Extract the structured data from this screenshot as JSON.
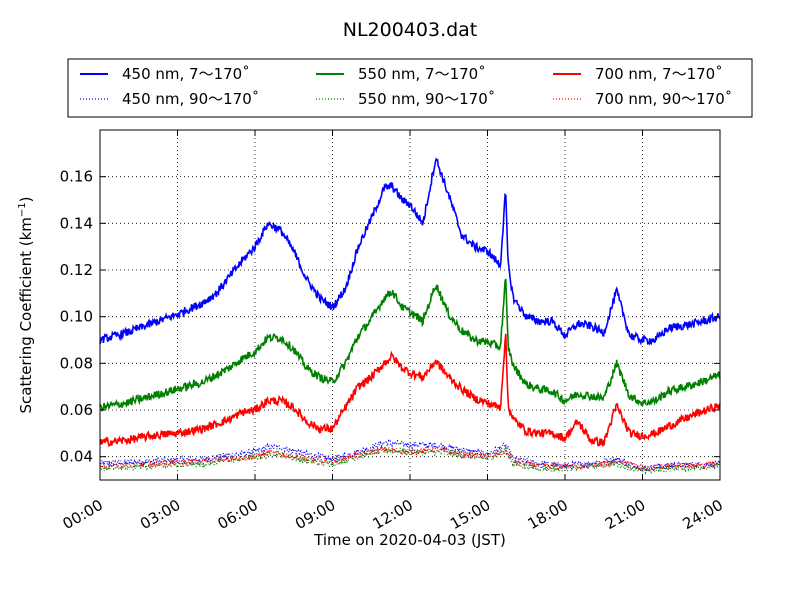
{
  "chart_data": {
    "type": "line",
    "title": "NL200403.dat",
    "xlabel": "Time on 2020-04-03 (JST)",
    "ylabel_main": "Scattering Coefficient (km",
    "ylabel_sup": "−1",
    "ylabel_close": ")",
    "xlim": [
      "00:00",
      "24:00"
    ],
    "ylim": [
      0.03,
      0.18
    ],
    "x_ticks": [
      "00:00",
      "03:00",
      "06:00",
      "09:00",
      "12:00",
      "15:00",
      "18:00",
      "21:00",
      "24:00"
    ],
    "y_ticks": [
      "0.04",
      "0.06",
      "0.08",
      "0.10",
      "0.12",
      "0.14",
      "0.16"
    ],
    "grid": true,
    "legend_position": "top",
    "colors": {
      "450": "#0000ff",
      "550": "#008000",
      "700": "#ff0000"
    },
    "series": [
      {
        "name": "450 nm, 7～170˚",
        "style": "solid",
        "color": "#0000ff",
        "x_hours": [
          0,
          1,
          2,
          3,
          4,
          4.5,
          5,
          5.5,
          6,
          6.5,
          7,
          7.5,
          8,
          8.5,
          9,
          9.5,
          10,
          10.5,
          11,
          11.3,
          11.7,
          12,
          12.5,
          13,
          13.5,
          14,
          14.5,
          15,
          15.5,
          15.7,
          15.8,
          16,
          16.5,
          17,
          17.5,
          18,
          18.5,
          19,
          19.5,
          20,
          20.5,
          21,
          21.5,
          22,
          23,
          24
        ],
        "values": [
          0.09,
          0.093,
          0.097,
          0.101,
          0.106,
          0.11,
          0.117,
          0.124,
          0.13,
          0.14,
          0.137,
          0.128,
          0.116,
          0.108,
          0.104,
          0.112,
          0.13,
          0.142,
          0.155,
          0.156,
          0.15,
          0.148,
          0.14,
          0.168,
          0.152,
          0.135,
          0.13,
          0.128,
          0.122,
          0.154,
          0.122,
          0.108,
          0.1,
          0.098,
          0.098,
          0.092,
          0.097,
          0.096,
          0.093,
          0.111,
          0.092,
          0.09,
          0.09,
          0.095,
          0.097,
          0.1
        ]
      },
      {
        "name": "550 nm, 7～170˚",
        "style": "solid",
        "color": "#008000",
        "x_hours": [
          0,
          1,
          2,
          3,
          4,
          4.5,
          5,
          5.5,
          6,
          6.5,
          7,
          7.5,
          8,
          8.5,
          9,
          9.5,
          10,
          10.5,
          11,
          11.3,
          11.7,
          12,
          12.5,
          13,
          13.5,
          14,
          14.5,
          15,
          15.5,
          15.7,
          15.8,
          16,
          16.5,
          17,
          17.5,
          18,
          18.5,
          19,
          19.5,
          20,
          20.5,
          21,
          21.5,
          22,
          23,
          24
        ],
        "values": [
          0.061,
          0.063,
          0.066,
          0.069,
          0.072,
          0.075,
          0.078,
          0.082,
          0.085,
          0.091,
          0.091,
          0.086,
          0.078,
          0.074,
          0.072,
          0.08,
          0.092,
          0.099,
          0.108,
          0.111,
          0.104,
          0.102,
          0.098,
          0.114,
          0.101,
          0.094,
          0.09,
          0.089,
          0.087,
          0.117,
          0.087,
          0.079,
          0.071,
          0.069,
          0.068,
          0.064,
          0.067,
          0.066,
          0.065,
          0.08,
          0.066,
          0.063,
          0.064,
          0.068,
          0.071,
          0.075
        ]
      },
      {
        "name": "700 nm, 7～170˚",
        "style": "solid",
        "color": "#ff0000",
        "x_hours": [
          0,
          1,
          2,
          3,
          4,
          4.5,
          5,
          5.5,
          6,
          6.5,
          7,
          7.5,
          8,
          8.5,
          9,
          9.5,
          10,
          10.5,
          11,
          11.3,
          11.7,
          12,
          12.5,
          13,
          13.5,
          14,
          14.5,
          15,
          15.5,
          15.7,
          15.8,
          16,
          16.5,
          17,
          17.5,
          18,
          18.5,
          19,
          19.5,
          20,
          20.5,
          21,
          21.5,
          22,
          23,
          24
        ],
        "values": [
          0.046,
          0.047,
          0.049,
          0.05,
          0.052,
          0.054,
          0.056,
          0.059,
          0.06,
          0.064,
          0.064,
          0.061,
          0.055,
          0.052,
          0.052,
          0.061,
          0.07,
          0.074,
          0.08,
          0.083,
          0.078,
          0.076,
          0.074,
          0.081,
          0.074,
          0.069,
          0.065,
          0.063,
          0.061,
          0.093,
          0.062,
          0.056,
          0.051,
          0.05,
          0.05,
          0.048,
          0.055,
          0.047,
          0.046,
          0.062,
          0.05,
          0.049,
          0.05,
          0.053,
          0.058,
          0.062
        ]
      },
      {
        "name": "450 nm, 90～170˚",
        "style": "dotted",
        "color": "#0000ff",
        "x_hours": [
          0,
          2,
          4,
          6,
          6.5,
          7,
          8,
          9,
          10,
          11,
          12,
          13,
          14,
          15,
          15.7,
          16,
          17,
          18,
          19,
          20,
          21,
          22,
          24
        ],
        "values": [
          0.037,
          0.038,
          0.039,
          0.042,
          0.044,
          0.044,
          0.041,
          0.039,
          0.042,
          0.046,
          0.045,
          0.045,
          0.043,
          0.041,
          0.045,
          0.039,
          0.037,
          0.036,
          0.037,
          0.039,
          0.035,
          0.036,
          0.037
        ]
      },
      {
        "name": "550 nm, 90～170˚",
        "style": "dotted",
        "color": "#008000",
        "x_hours": [
          0,
          2,
          4,
          6,
          6.5,
          7,
          8,
          9,
          10,
          11,
          12,
          13,
          14,
          15,
          15.7,
          16,
          17,
          18,
          19,
          20,
          21,
          22,
          24
        ],
        "values": [
          0.035,
          0.036,
          0.037,
          0.04,
          0.041,
          0.041,
          0.038,
          0.037,
          0.04,
          0.043,
          0.042,
          0.042,
          0.041,
          0.039,
          0.043,
          0.037,
          0.035,
          0.035,
          0.036,
          0.037,
          0.034,
          0.035,
          0.036
        ]
      },
      {
        "name": "700 nm, 90～170˚",
        "style": "dotted",
        "color": "#ff0000",
        "x_hours": [
          0,
          2,
          4,
          6,
          6.5,
          7,
          8,
          9,
          10,
          11,
          12,
          13,
          14,
          15,
          15.7,
          16,
          17,
          18,
          19,
          20,
          21,
          22,
          24
        ],
        "values": [
          0.036,
          0.037,
          0.038,
          0.04,
          0.042,
          0.041,
          0.039,
          0.038,
          0.041,
          0.043,
          0.042,
          0.043,
          0.041,
          0.04,
          0.042,
          0.038,
          0.036,
          0.036,
          0.036,
          0.038,
          0.035,
          0.036,
          0.037
        ]
      }
    ]
  }
}
